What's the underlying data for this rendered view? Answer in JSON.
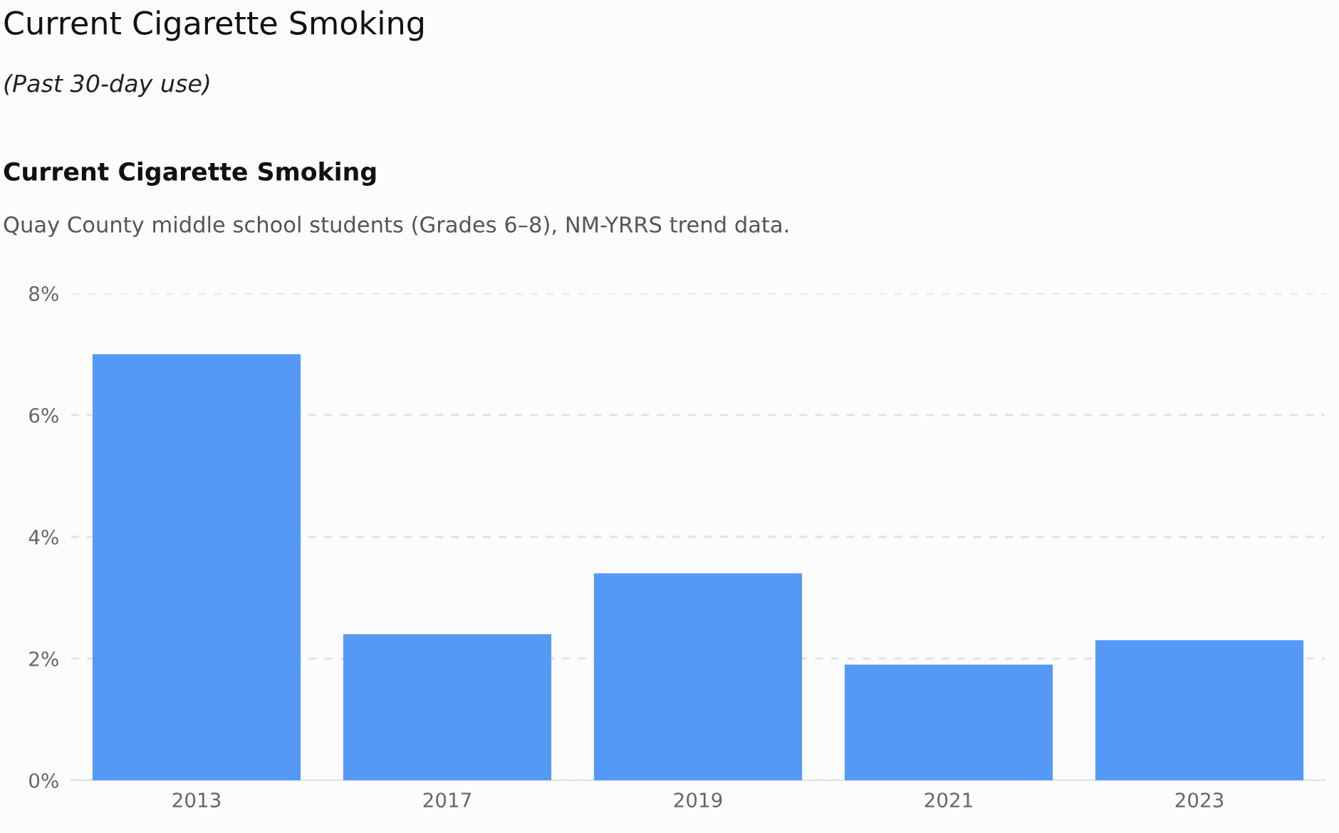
{
  "chart_data": {
    "type": "bar",
    "title": "Current Cigarette Smoking",
    "subtitle": "(Past 30-day use)",
    "annotations": [
      "Current Cigarette Smoking",
      "Quay County middle school students (Grades 6–8), NM-YRRS trend data."
    ],
    "categories": [
      "2013",
      "2017",
      "2019",
      "2021",
      "2023"
    ],
    "values": [
      7.0,
      2.4,
      3.4,
      1.9,
      2.3
    ],
    "color": "#5599f7",
    "ylim": [
      0,
      8
    ],
    "yticks": [
      {
        "value": 0,
        "label": "0%"
      },
      {
        "value": 2,
        "label": "2%"
      },
      {
        "value": 4,
        "label": "4%"
      },
      {
        "value": 6,
        "label": "6%"
      },
      {
        "value": 8,
        "label": "8%"
      }
    ],
    "grid": "y"
  }
}
